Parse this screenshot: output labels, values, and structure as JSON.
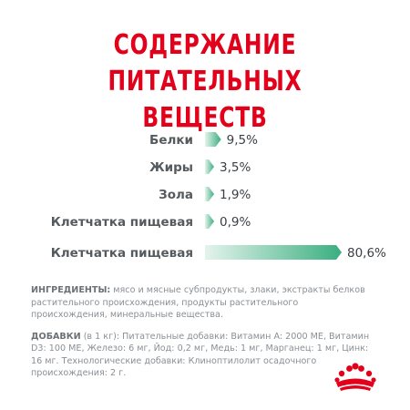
{
  "title": {
    "line1": "СОДЕРЖАНИЕ",
    "line2": "ПИТАТЕЛЬНЫХ ВЕЩЕСТВ"
  },
  "colors": {
    "title": "#e2001a",
    "bar_start": "#e4f3ec",
    "bar_end": "#3aae80"
  },
  "chart_data": {
    "type": "bar",
    "orientation": "horizontal",
    "categories": [
      "Белки",
      "Жиры",
      "Зола",
      "Клетчатка пищевая",
      "Клетчатка пищевая"
    ],
    "values": [
      9.5,
      3.5,
      1.9,
      0.9,
      80.6
    ],
    "value_labels": [
      "9,5%",
      "3,5%",
      "1,9%",
      "0,9%",
      "80,6%"
    ],
    "unit": "%",
    "grid": false,
    "legend": "none"
  },
  "ingredients": {
    "key": "ИНГРЕДИЕНТЫ:",
    "text": "мясо и мясные субпродукты, злаки, экстракты белков растительного происхождения, продукты растительного происхождения, минеральные вещества."
  },
  "additives": {
    "key": "ДОБАВКИ",
    "text": "(в 1 кг): Питательные добавки: Витамин A: 2000 МЕ, Витамин D3: 100 МЕ, Железо: 6 мг, Йод: 0,2 мг, Медь: 1 мг, Марганец: 1 мг, Цинк: 16 мг. Технологические добавки: Клиноптилолит осадочного происхождения: 2 г."
  },
  "logo": {
    "icon": "royal-canin-crown-icon"
  }
}
